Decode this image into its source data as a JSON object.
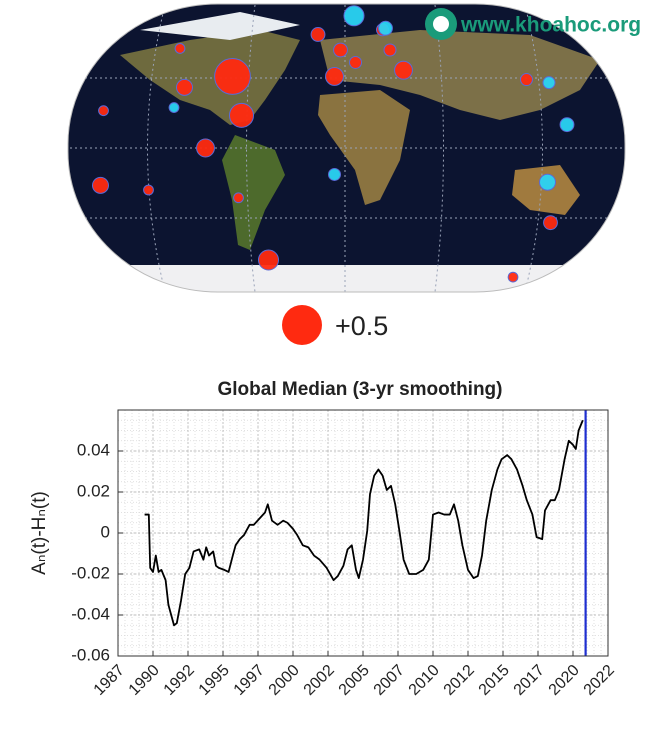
{
  "watermark": "www.khoahoc.org",
  "chart_data": [
    {
      "type": "bubble-map",
      "positive_color": "#ff2a10",
      "negative_color": "#2ad4f4",
      "bubbles": [
        {
          "lon": -75,
          "lat": 46,
          "value": 0.4
        },
        {
          "lon": -69,
          "lat": 21,
          "value": 0.18
        },
        {
          "lon": -93,
          "lat": 0,
          "value": 0.1
        },
        {
          "lon": -107,
          "lat": 39,
          "value": 0.08
        },
        {
          "lon": -163,
          "lat": -24,
          "value": 0.08
        },
        {
          "lon": -161,
          "lat": 24,
          "value": 0.03
        },
        {
          "lon": -131,
          "lat": -27,
          "value": 0.03
        },
        {
          "lon": -51,
          "lat": -72,
          "value": 0.125
        },
        {
          "lon": -71,
          "lat": -32,
          "value": 0.03
        },
        {
          "lon": -18,
          "lat": 73,
          "value": 0.06
        },
        {
          "lon": -3,
          "lat": 63,
          "value": 0.06
        },
        {
          "lon": -7,
          "lat": 46,
          "value": 0.1
        },
        {
          "lon": 7,
          "lat": 55,
          "value": 0.045
        },
        {
          "lon": 39,
          "lat": 50,
          "value": 0.1
        },
        {
          "lon": 30,
          "lat": 63,
          "value": 0.045
        },
        {
          "lon": 25,
          "lat": 76,
          "value": 0.045
        },
        {
          "lon": 137,
          "lat": -48,
          "value": 0.06
        },
        {
          "lon": 121,
          "lat": 44,
          "value": 0.045
        },
        {
          "lon": 112,
          "lat": -83,
          "value": 0.03
        },
        {
          "lon": -110,
          "lat": 64,
          "value": 0.03
        },
        {
          "lon": 6,
          "lat": 85,
          "value": -0.125
        },
        {
          "lon": 135,
          "lat": -22,
          "value": -0.08
        },
        {
          "lon": 148,
          "lat": 15,
          "value": -0.06
        },
        {
          "lon": -7,
          "lat": -17,
          "value": -0.045
        },
        {
          "lon": 136,
          "lat": 42,
          "value": -0.045
        },
        {
          "lon": -114,
          "lat": 26,
          "value": -0.03
        },
        {
          "lon": 27,
          "lat": 77,
          "value": -0.06
        },
        {
          "lon": 62,
          "lat": 76,
          "value": -0.03
        }
      ],
      "legend": {
        "value": 0.5,
        "label": "+0.5"
      }
    },
    {
      "type": "line",
      "title": "Global Median (3-yr smoothing)",
      "ylabel": "Aₙ(t)-Hₙ(t)",
      "xlim": [
        1987.5,
        2022.5
      ],
      "xticks": [
        {
          "value": 1987.5,
          "label": "1987"
        },
        1990,
        {
          "value": 1992.5,
          "label": "1992"
        },
        1995,
        {
          "value": 1997.5,
          "label": "1997"
        },
        2000,
        {
          "value": 2002.5,
          "label": "2002"
        },
        2005,
        {
          "value": 2007.5,
          "label": "2007"
        },
        2010,
        {
          "value": 2012.5,
          "label": "2012"
        },
        2015,
        {
          "value": 2017.5,
          "label": "2017"
        },
        2020,
        {
          "value": 2022.5,
          "label": "2022"
        }
      ],
      "ylim": [
        -0.06,
        0.06
      ],
      "yticks": [
        -0.06,
        -0.04,
        -0.02,
        0,
        0.02,
        0.04
      ],
      "grid": true,
      "marker_x": 2020.9,
      "marker_color": "#1f2fd0",
      "series": [
        {
          "color": "#000000",
          "x": [
            1989.4,
            1989.7,
            1989.8,
            1990.0,
            1990.2,
            1990.4,
            1990.6,
            1990.9,
            1991.1,
            1991.5,
            1991.7,
            1992.0,
            1992.3,
            1992.6,
            1992.9,
            1993.3,
            1993.6,
            1993.8,
            1994.0,
            1994.3,
            1994.5,
            1994.7,
            1995.1,
            1995.4,
            1995.7,
            1995.9,
            1996.2,
            1996.5,
            1996.9,
            1997.2,
            1997.6,
            1998.0,
            1998.2,
            1998.5,
            1998.9,
            1999.3,
            1999.6,
            2000.0,
            2000.3,
            2000.7,
            2001.1,
            2001.5,
            2001.9,
            2002.4,
            2002.9,
            2003.2,
            2003.6,
            2003.9,
            2004.2,
            2004.5,
            2004.7,
            2005.0,
            2005.3,
            2005.5,
            2005.8,
            2006.1,
            2006.4,
            2006.7,
            2007.0,
            2007.3,
            2007.6,
            2007.9,
            2008.3,
            2008.8,
            2009.3,
            2009.7,
            2010.0,
            2010.4,
            2010.8,
            2011.2,
            2011.5,
            2011.8,
            2012.1,
            2012.5,
            2012.9,
            2013.2,
            2013.5,
            2013.8,
            2014.2,
            2014.6,
            2014.9,
            2015.3,
            2015.6,
            2016.0,
            2016.4,
            2016.7,
            2017.1,
            2017.4,
            2017.8,
            2018.0,
            2018.4,
            2018.7,
            2019.0,
            2019.4,
            2019.7,
            2020.0,
            2020.2,
            2020.4,
            2020.7
          ],
          "values": [
            0.009,
            0.009,
            -0.017,
            -0.019,
            -0.011,
            -0.019,
            -0.018,
            -0.023,
            -0.035,
            -0.045,
            -0.044,
            -0.033,
            -0.02,
            -0.017,
            -0.009,
            -0.008,
            -0.013,
            -0.007,
            -0.011,
            -0.009,
            -0.016,
            -0.017,
            -0.018,
            -0.019,
            -0.011,
            -0.006,
            -0.003,
            -0.001,
            0.004,
            0.004,
            0.007,
            0.01,
            0.014,
            0.006,
            0.004,
            0.006,
            0.005,
            0.002,
            -0.001,
            -0.006,
            -0.007,
            -0.011,
            -0.013,
            -0.017,
            -0.023,
            -0.021,
            -0.016,
            -0.008,
            -0.006,
            -0.018,
            -0.022,
            -0.013,
            0.001,
            0.019,
            0.028,
            0.031,
            0.028,
            0.021,
            0.023,
            0.014,
            0.001,
            -0.013,
            -0.02,
            -0.02,
            -0.018,
            -0.013,
            0.009,
            0.01,
            0.009,
            0.009,
            0.014,
            0.006,
            -0.006,
            -0.018,
            -0.022,
            -0.021,
            -0.011,
            0.006,
            0.021,
            0.031,
            0.036,
            0.038,
            0.036,
            0.031,
            0.023,
            0.016,
            0.009,
            -0.002,
            -0.003,
            0.011,
            0.016,
            0.016,
            0.021,
            0.036,
            0.045,
            0.043,
            0.041,
            0.05,
            0.055
          ]
        }
      ]
    }
  ]
}
